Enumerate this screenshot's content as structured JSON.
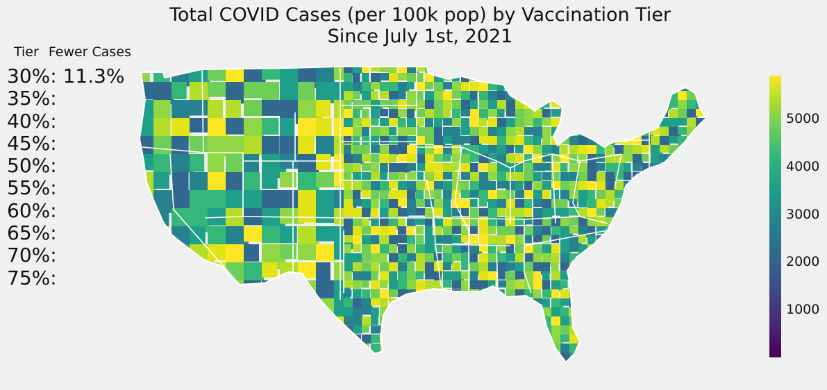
{
  "title_line1": "Total COVID Cases (per 100k pop) by Vaccination Tier",
  "title_line2": "Since July 1st, 2021",
  "tier_header": {
    "col1": "Tier",
    "col2": "Fewer Cases"
  },
  "tiers": [
    {
      "label": "30%:",
      "value": "11.3%"
    },
    {
      "label": "35%:",
      "value": ""
    },
    {
      "label": "40%:",
      "value": ""
    },
    {
      "label": "45%:",
      "value": ""
    },
    {
      "label": "50%:",
      "value": ""
    },
    {
      "label": "55%:",
      "value": ""
    },
    {
      "label": "60%:",
      "value": ""
    },
    {
      "label": "65%:",
      "value": ""
    },
    {
      "label": "70%:",
      "value": ""
    },
    {
      "label": "75%:",
      "value": ""
    }
  ],
  "colorbar": {
    "colormap": "viridis",
    "min": 0,
    "max": 5900,
    "ticks": [
      "1000",
      "2000",
      "3000",
      "4000",
      "5000"
    ],
    "tick_values": [
      1000,
      2000,
      3000,
      4000,
      5000
    ]
  },
  "map": {
    "region": "contiguous United States",
    "level": "county choropleth",
    "border_color": "#ffffff",
    "palette": [
      "#fde725",
      "#e2e418",
      "#b5de2b",
      "#8fd744",
      "#6ece58",
      "#35b779",
      "#1f9e89",
      "#26828e",
      "#31688e"
    ]
  }
}
